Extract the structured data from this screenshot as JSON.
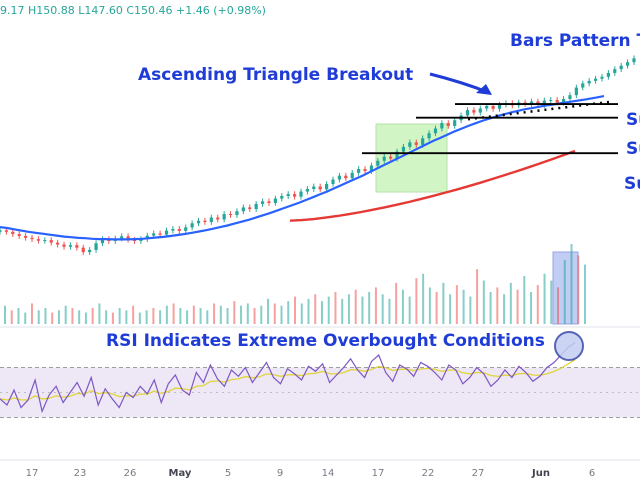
{
  "header": {
    "ohlc_text": "9.17  H150.88  L147.60  C150.46  +1.46 (+0.98%)"
  },
  "annotations": {
    "bars_pattern": "Bars Pattern T",
    "triangle": "Ascending Triangle Breakout",
    "rsi": "RSI Indicates Extreme Overbought Conditions",
    "support_1": "Su",
    "support_2": "Su",
    "support_3": "Su"
  },
  "colors": {
    "up": "#26a69a",
    "down": "#ef5350",
    "ma_fast": "#2962ff",
    "ma_slow": "#e53935",
    "annotation": "#1f3dd6",
    "rsi_line": "#7e57c2",
    "rsi_signal": "#e0d43a",
    "rsi_band": "#ede7f6",
    "highlight_green": "#b9f0a6",
    "highlight_blue": "#a8b8f0"
  },
  "chart_data": {
    "type": "candlestick",
    "x_ticks": [
      "17",
      "23",
      "26",
      "May",
      "5",
      "9",
      "14",
      "17",
      "22",
      "27",
      "Jun",
      "6"
    ],
    "price_range": [
      80,
      162
    ],
    "closes": [
      102,
      101.5,
      100.8,
      100.2,
      99.6,
      99.2,
      98.7,
      98.9,
      98.1,
      97.5,
      96.8,
      97.3,
      96.5,
      95.1,
      95.8,
      97.9,
      99.2,
      98.6,
      99.4,
      100.1,
      99.0,
      98.6,
      99.2,
      100.3,
      101.0,
      100.6,
      101.9,
      102.4,
      101.8,
      102.9,
      104.2,
      105.0,
      104.6,
      106.0,
      105.4,
      107.1,
      106.8,
      108.0,
      109.2,
      108.7,
      110.3,
      111.1,
      110.6,
      112.0,
      112.8,
      113.4,
      112.6,
      114.2,
      115.0,
      115.8,
      114.9,
      116.6,
      118.0,
      119.2,
      118.4,
      120.1,
      121.3,
      120.7,
      122.4,
      123.9,
      125.2,
      124.6,
      126.8,
      128.3,
      129.7,
      128.9,
      131.0,
      132.6,
      134.1,
      135.8,
      134.9,
      136.7,
      138.2,
      139.9,
      139.1,
      140.4,
      141.2,
      140.3,
      141.6,
      142.1,
      141.4,
      142.3,
      141.8,
      142.6,
      141.5,
      142.9,
      143.1,
      142.2,
      143.4,
      144.6,
      147.0,
      148.3,
      149.1,
      149.8,
      150.4,
      151.6,
      152.8,
      153.9,
      155.0,
      156.2
    ],
    "ma_fast": [
      103.0,
      102.7,
      102.3,
      101.9,
      101.5,
      101.2,
      100.9,
      100.6,
      100.3,
      100.0,
      99.8,
      99.6,
      99.5,
      99.3,
      99.2,
      99.2,
      99.1,
      99.1,
      99.1,
      99.2,
      99.3,
      99.5,
      99.7,
      99.9,
      100.2,
      100.5,
      100.8,
      101.2,
      101.6,
      102.0,
      102.5,
      103.0,
      103.5,
      104.1,
      104.7,
      105.3,
      106.0,
      106.7,
      107.4,
      108.2,
      109.0,
      109.8,
      110.6,
      111.5,
      112.4,
      113.3,
      114.2,
      115.2,
      116.2,
      117.2,
      118.2,
      119.2,
      120.3,
      121.4,
      122.5,
      123.6,
      124.7,
      125.8,
      126.9,
      128.0,
      129.1,
      130.2,
      131.2,
      132.2,
      133.2,
      134.1,
      135.0,
      135.8,
      136.6,
      137.3,
      138.0,
      138.6,
      139.2,
      139.7,
      140.2,
      140.6,
      141.0,
      141.4,
      141.7,
      142.1,
      142.4,
      142.8,
      143.1,
      143.5,
      143.9,
      144.3
    ],
    "ma_slow_range": [
      105,
      127
    ],
    "support_levels": [
      141.8,
      137.5,
      126.3
    ],
    "triangle_resistance": 142.0,
    "volume": [
      8,
      6,
      7,
      5,
      9,
      6,
      7,
      5,
      6,
      8,
      7,
      6,
      5,
      7,
      9,
      6,
      5,
      7,
      6,
      8,
      5,
      6,
      7,
      6,
      8,
      9,
      7,
      6,
      8,
      7,
      6,
      9,
      8,
      7,
      10,
      8,
      9,
      7,
      8,
      11,
      9,
      8,
      10,
      12,
      9,
      11,
      13,
      10,
      12,
      14,
      11,
      13,
      15,
      12,
      14,
      16,
      13,
      11,
      18,
      15,
      12,
      20,
      22,
      16,
      14,
      18,
      13,
      17,
      15,
      12,
      24,
      19,
      14,
      16,
      13,
      18,
      15,
      21,
      14,
      17,
      22,
      19,
      16,
      28,
      35,
      30,
      26
    ],
    "rsi_range": [
      0,
      100
    ],
    "rsi_overbought": 70,
    "rsi_oversold": 30,
    "rsi": [
      45,
      40,
      52,
      38,
      44,
      60,
      35,
      48,
      55,
      42,
      50,
      58,
      47,
      62,
      40,
      53,
      45,
      38,
      50,
      46,
      55,
      49,
      60,
      42,
      57,
      64,
      52,
      48,
      66,
      58,
      72,
      61,
      55,
      68,
      63,
      70,
      58,
      66,
      74,
      62,
      57,
      69,
      65,
      60,
      71,
      67,
      73,
      58,
      64,
      70,
      77,
      68,
      62,
      75,
      80,
      66,
      59,
      72,
      69,
      63,
      74,
      71,
      66,
      60,
      72,
      68,
      57,
      62,
      70,
      65,
      55,
      60,
      68,
      62,
      71,
      66,
      59,
      63,
      70,
      74,
      80,
      86,
      90
    ]
  }
}
